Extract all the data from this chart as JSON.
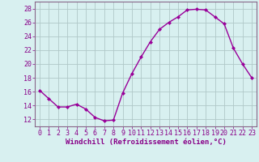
{
  "x": [
    0,
    1,
    2,
    3,
    4,
    5,
    6,
    7,
    8,
    9,
    10,
    11,
    12,
    13,
    14,
    15,
    16,
    17,
    18,
    19,
    20,
    21,
    22,
    23
  ],
  "y": [
    16.2,
    15.0,
    13.8,
    13.8,
    14.2,
    13.5,
    12.3,
    11.8,
    11.9,
    15.8,
    18.6,
    21.0,
    23.2,
    25.0,
    26.0,
    26.8,
    27.8,
    27.9,
    27.8,
    26.8,
    25.8,
    22.3,
    20.0,
    18.0
  ],
  "line_color": "#990099",
  "marker": "D",
  "marker_size": 2.0,
  "line_width": 1.0,
  "bg_color": "#d8f0f0",
  "grid_color": "#b0c8c8",
  "xlabel": "Windchill (Refroidissement éolien,°C)",
  "xlabel_fontsize": 6.5,
  "tick_fontsize": 6,
  "ylim": [
    11,
    29
  ],
  "yticks": [
    12,
    14,
    16,
    18,
    20,
    22,
    24,
    26,
    28
  ],
  "xlim": [
    -0.5,
    23.5
  ],
  "xticks": [
    0,
    1,
    2,
    3,
    4,
    5,
    6,
    7,
    8,
    9,
    10,
    11,
    12,
    13,
    14,
    15,
    16,
    17,
    18,
    19,
    20,
    21,
    22,
    23
  ],
  "spine_color": "#886688",
  "text_color": "#880088"
}
